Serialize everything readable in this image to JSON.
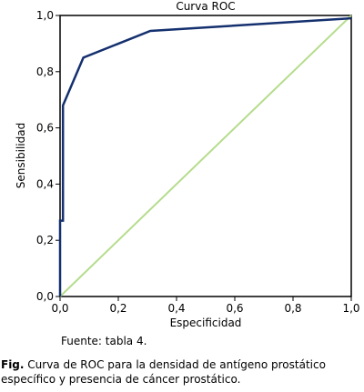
{
  "chart_data": {
    "type": "line",
    "title": "Curva ROC",
    "xlabel": "Especificidad",
    "ylabel": "Sensibilidad",
    "xlim": [
      0,
      1
    ],
    "ylim": [
      0,
      1
    ],
    "x_ticks": [
      "0,0",
      "0,2",
      "0,4",
      "0,6",
      "0,8",
      "1,0"
    ],
    "y_ticks": [
      "0,0",
      "0,2",
      "0,4",
      "0,6",
      "0,8",
      "1,0"
    ],
    "grid": false,
    "series": [
      {
        "color": "#14306e",
        "points": [
          [
            0.0,
            0.0
          ],
          [
            0.0,
            0.27
          ],
          [
            0.01,
            0.27
          ],
          [
            0.01,
            0.68
          ],
          [
            0.08,
            0.85
          ],
          [
            0.31,
            0.945
          ],
          [
            1.0,
            0.99
          ]
        ]
      },
      {
        "color": "#b5dc8c",
        "points": [
          [
            0.0,
            0.0
          ],
          [
            1.0,
            1.0
          ]
        ]
      }
    ]
  },
  "source_text": "Fuente: tabla 4.",
  "caption": {
    "label": "Fig.",
    "text": " Curva de ROC para la densidad de antígeno prostático específico y presencia de cáncer prostático."
  }
}
